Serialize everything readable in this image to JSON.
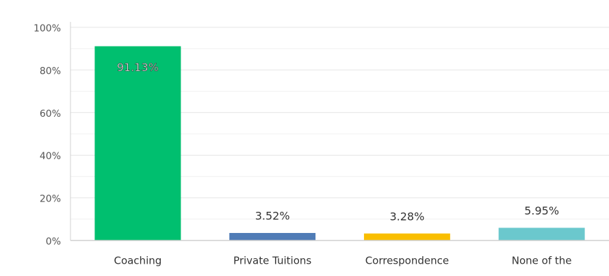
{
  "chart_data": {
    "type": "bar",
    "categories": [
      "Coaching",
      "Private Tuitions",
      "Correspondence",
      "None of the"
    ],
    "values": [
      91.13,
      3.52,
      3.28,
      5.95
    ],
    "value_labels": [
      "91.13%",
      "3.52%",
      "3.28%",
      "5.95%"
    ],
    "colors": [
      "#00bf6f",
      "#507cb6",
      "#f9be00",
      "#6bc8cd"
    ],
    "ylim": [
      0,
      100
    ],
    "yticks": [
      {
        "value": 0,
        "label": "0%"
      },
      {
        "value": 20,
        "label": "20%"
      },
      {
        "value": 40,
        "label": "40%"
      },
      {
        "value": 60,
        "label": "60%"
      },
      {
        "value": 80,
        "label": "80%"
      },
      {
        "value": 100,
        "label": "100%"
      }
    ],
    "minor_yticks": [
      10,
      30,
      50,
      70,
      90
    ],
    "grid": true
  }
}
